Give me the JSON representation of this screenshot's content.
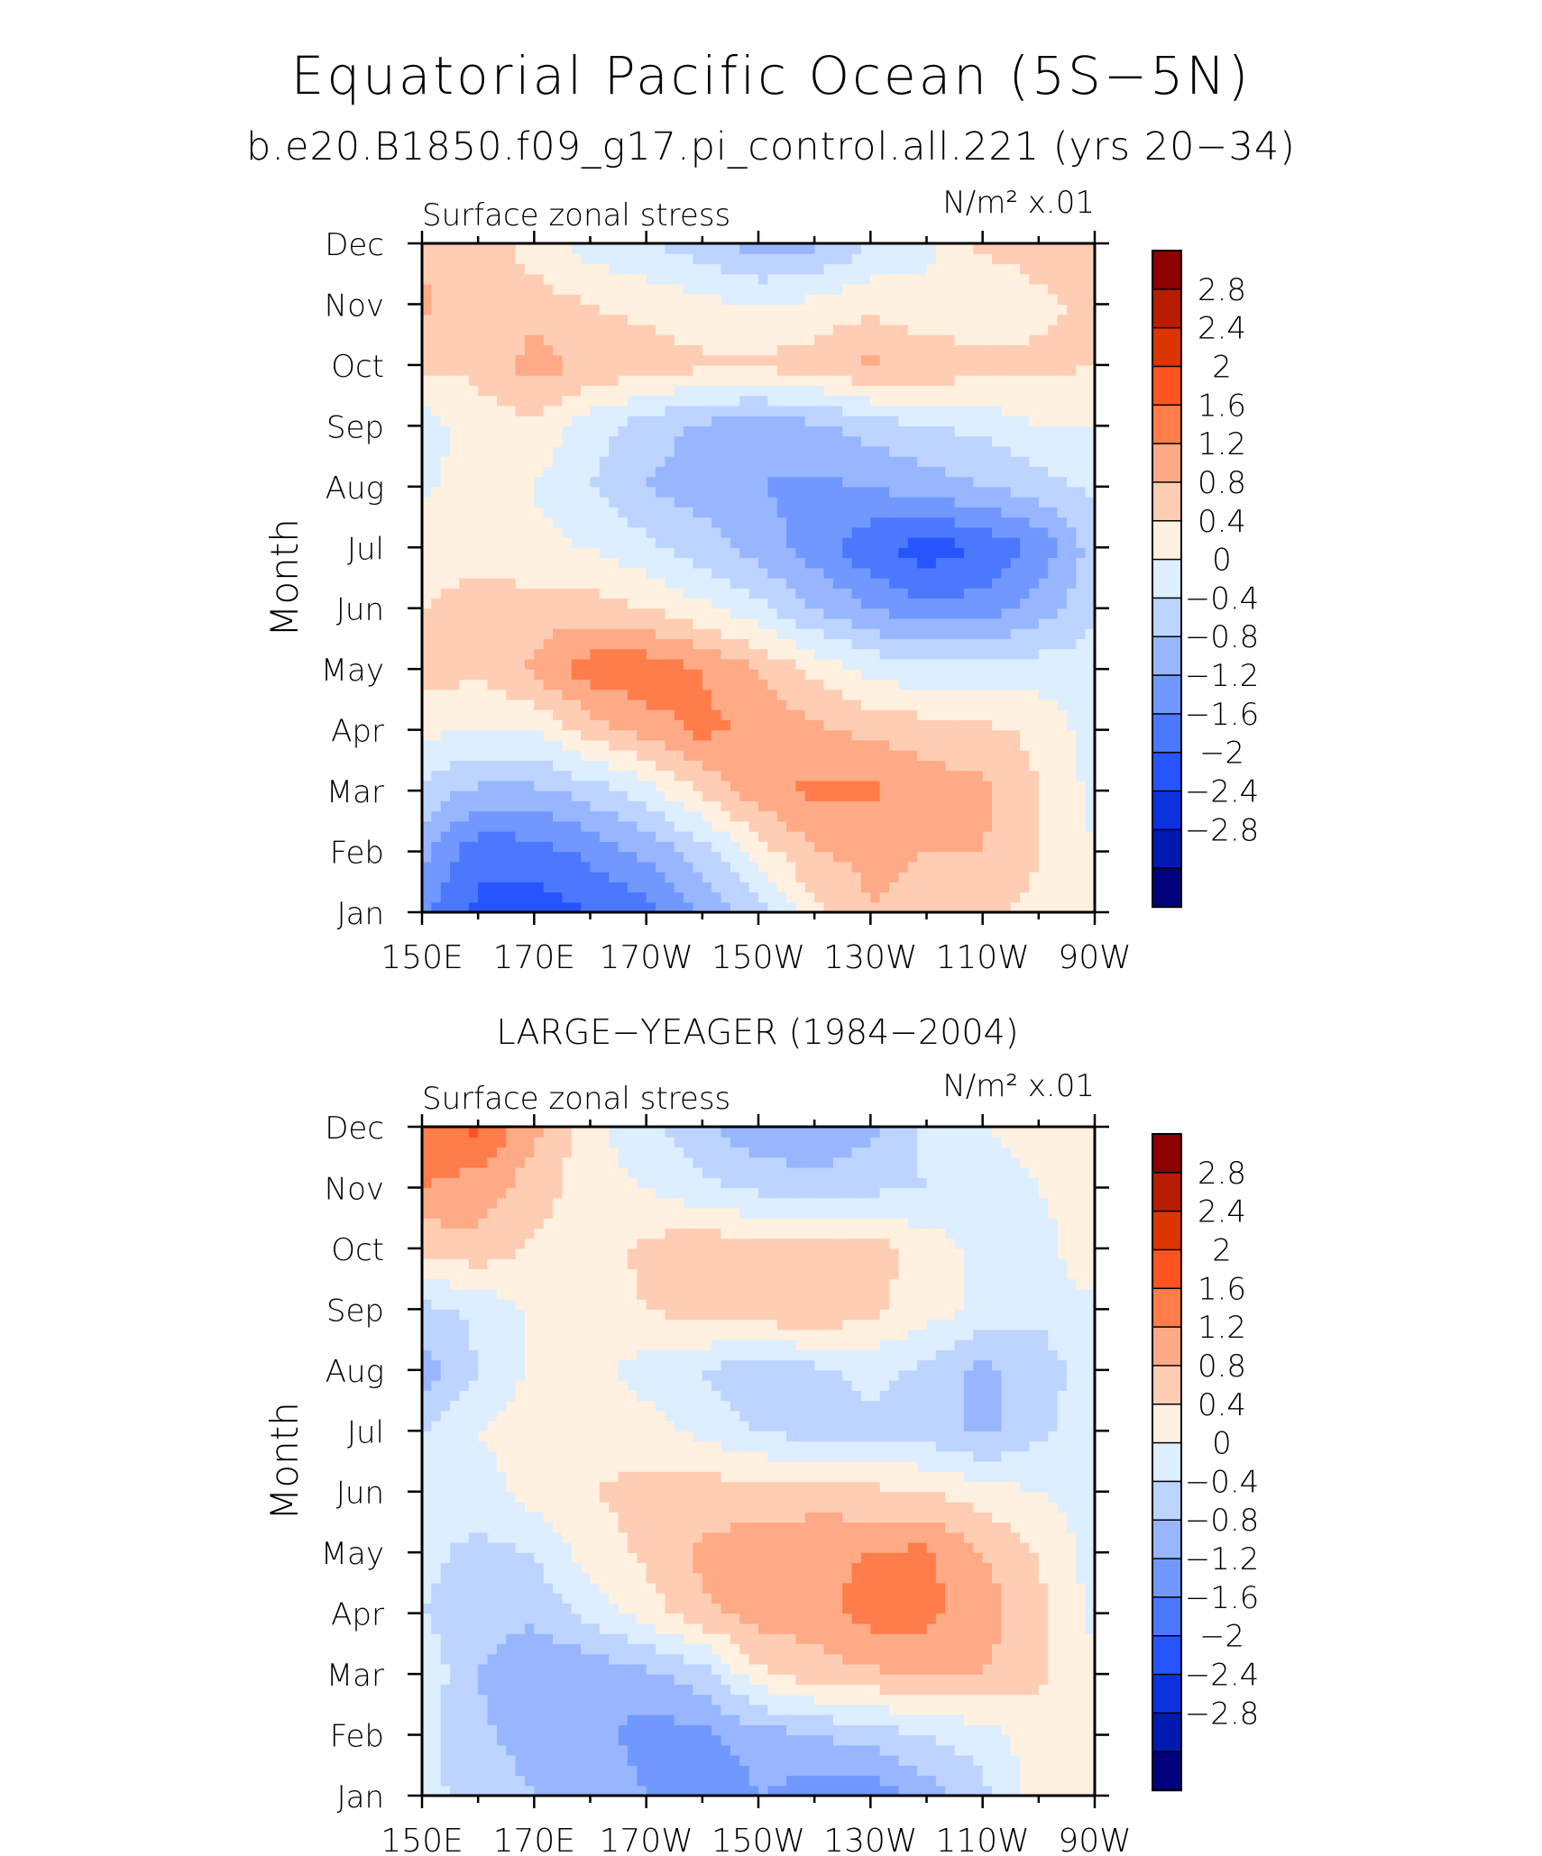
{
  "title": "Equatorial Pacific Ocean (5S−5N)",
  "subtitle": "b.e20.B1850.f09_g17.pi_control.all.221 (yrs 20−34)",
  "colorbar": {
    "colors": [
      "#8c0000",
      "#b81c00",
      "#dc3500",
      "#ff5420",
      "#ff7d4a",
      "#ffaa86",
      "#ffcdb4",
      "#fff0e0",
      "#dceeff",
      "#bcd4ff",
      "#98b6ff",
      "#7198ff",
      "#4b78ff",
      "#2654ff",
      "#0c32e0",
      "#0019b0",
      "#00007c"
    ],
    "labels": [
      "2.8",
      "2.4",
      "2",
      "1.6",
      "1.2",
      "0.8",
      "0.4",
      "0",
      "−0.4",
      "−0.8",
      "−1.2",
      "−1.6",
      "−2",
      "−2.4",
      "−2.8"
    ]
  },
  "chart_data": [
    {
      "type": "heatmap",
      "panel_title": "",
      "left_label": "Surface zonal stress",
      "right_label": "N/m² x.01",
      "ylabel": "Month",
      "x_ticks": [
        "150E",
        "170E",
        "170W",
        "150W",
        "130W",
        "110W",
        "90W"
      ],
      "y_ticks": [
        "Jan",
        "Feb",
        "Mar",
        "Apr",
        "May",
        "Jun",
        "Jul",
        "Aug",
        "Sep",
        "Oct",
        "Nov",
        "Dec"
      ],
      "x_range": [
        150,
        270
      ],
      "y_range": [
        "Jan",
        "Dec"
      ],
      "x": [
        150,
        160,
        170,
        180,
        190,
        200,
        210,
        220,
        230,
        240,
        250,
        260,
        270
      ],
      "values": [
        [
          -1.5,
          -2.1,
          -2.2,
          -2.0,
          -1.8,
          -1.1,
          -0.6,
          0.3,
          0.8,
          0.7,
          0.5,
          0.3,
          0.0
        ],
        [
          -1.1,
          -1.9,
          -1.8,
          -1.5,
          -1.1,
          -0.6,
          0.2,
          0.8,
          0.9,
          0.8,
          0.8,
          0.4,
          0.0
        ],
        [
          -0.5,
          -0.9,
          -0.9,
          -0.6,
          -0.2,
          0.5,
          1.0,
          1.3,
          1.3,
          1.0,
          0.9,
          0.4,
          -0.1
        ],
        [
          0.1,
          0.0,
          0.0,
          0.6,
          1.0,
          1.3,
          1.1,
          0.9,
          0.7,
          0.6,
          0.5,
          0.3,
          -0.2
        ],
        [
          0.6,
          0.5,
          0.9,
          1.4,
          1.5,
          1.2,
          0.8,
          0.3,
          -0.1,
          -0.3,
          -0.3,
          -0.2,
          -0.2
        ],
        [
          0.4,
          0.5,
          0.6,
          0.6,
          0.4,
          0.1,
          -0.3,
          -0.8,
          -1.2,
          -1.5,
          -1.4,
          -1.0,
          -0.5
        ],
        [
          0.3,
          0.3,
          0.1,
          0.0,
          -0.3,
          -0.6,
          -1.0,
          -1.4,
          -1.9,
          -2.2,
          -2.0,
          -1.5,
          -0.6
        ],
        [
          -0.1,
          0.2,
          0.0,
          -0.4,
          -0.8,
          -1.0,
          -1.2,
          -1.3,
          -1.2,
          -1.0,
          -0.8,
          -0.6,
          -0.3
        ],
        [
          -0.2,
          0.2,
          0.3,
          -0.2,
          -0.6,
          -0.9,
          -1.1,
          -0.9,
          -0.6,
          -0.4,
          -0.3,
          0.0,
          0.0
        ],
        [
          0.5,
          0.5,
          1.0,
          0.7,
          0.6,
          0.5,
          0.5,
          0.6,
          0.9,
          0.7,
          0.6,
          0.5,
          0.4
        ],
        [
          0.9,
          0.5,
          0.6,
          0.4,
          0.3,
          0.1,
          0.0,
          0.1,
          0.3,
          0.1,
          0.0,
          0.3,
          0.5
        ],
        [
          0.6,
          0.7,
          0.2,
          -0.2,
          -0.4,
          -0.6,
          -1.0,
          -0.9,
          -0.4,
          -0.1,
          0.5,
          0.6,
          0.6
        ]
      ]
    },
    {
      "type": "heatmap",
      "panel_title": "LARGE−YEAGER (1984−2004)",
      "left_label": "Surface zonal stress",
      "right_label": "N/m² x.01",
      "ylabel": "Month",
      "x_ticks": [
        "150E",
        "170E",
        "170W",
        "150W",
        "130W",
        "110W",
        "90W"
      ],
      "y_ticks": [
        "Jan",
        "Feb",
        "Mar",
        "Apr",
        "May",
        "Jun",
        "Jul",
        "Aug",
        "Sep",
        "Oct",
        "Nov",
        "Dec"
      ],
      "x_range": [
        150,
        270
      ],
      "y_range": [
        "Jan",
        "Dec"
      ],
      "x": [
        150,
        160,
        170,
        180,
        190,
        200,
        210,
        220,
        230,
        240,
        250,
        260,
        270
      ],
      "values": [
        [
          -0.3,
          -0.5,
          -0.8,
          -0.9,
          -1.2,
          -1.6,
          -1.2,
          -1.4,
          -1.5,
          -1.0,
          -0.5,
          0.2,
          0.1
        ],
        [
          -0.3,
          -0.7,
          -1.0,
          -1.0,
          -1.4,
          -1.3,
          -1.0,
          -0.8,
          -0.6,
          -0.4,
          -0.2,
          0.2,
          0.2
        ],
        [
          -0.1,
          -0.8,
          -1.2,
          -1.1,
          -0.9,
          -0.6,
          0.3,
          0.6,
          0.7,
          0.9,
          0.8,
          0.5,
          0.1
        ],
        [
          -0.4,
          -0.6,
          -0.7,
          -0.3,
          0.2,
          0.7,
          1.0,
          1.0,
          1.4,
          1.3,
          1.0,
          0.5,
          -0.1
        ],
        [
          -0.3,
          -0.5,
          -0.4,
          0.2,
          0.5,
          0.9,
          1.0,
          1.1,
          1.2,
          1.3,
          0.8,
          0.4,
          -0.2
        ],
        [
          -0.3,
          -0.2,
          0.2,
          0.4,
          0.5,
          0.6,
          0.6,
          0.6,
          0.5,
          0.4,
          0.2,
          0.0,
          -0.2
        ],
        [
          -0.4,
          0.0,
          0.2,
          0.3,
          0.2,
          -0.1,
          -0.4,
          -0.6,
          -0.5,
          -0.6,
          -0.9,
          -0.5,
          -0.1
        ],
        [
          -1.0,
          -0.4,
          0.1,
          0.2,
          -0.2,
          -0.4,
          -0.7,
          -0.5,
          -0.3,
          -0.5,
          -0.9,
          -0.6,
          -0.2
        ],
        [
          -0.5,
          -0.3,
          0.1,
          0.2,
          0.4,
          0.6,
          0.7,
          0.8,
          0.5,
          0.2,
          -0.1,
          -0.3,
          -0.1
        ],
        [
          0.5,
          0.7,
          0.3,
          0.2,
          0.5,
          0.7,
          0.6,
          0.7,
          0.6,
          0.2,
          -0.1,
          -0.2,
          0.4
        ],
        [
          1.2,
          1.0,
          0.6,
          0.2,
          0.0,
          -0.3,
          -0.5,
          -0.6,
          -0.5,
          -0.4,
          -0.2,
          0.0,
          0.2
        ],
        [
          1.5,
          1.7,
          0.9,
          0.1,
          -0.3,
          -0.7,
          -1.1,
          -1.2,
          -0.9,
          -0.3,
          0.0,
          0.2,
          0.1
        ]
      ]
    }
  ]
}
